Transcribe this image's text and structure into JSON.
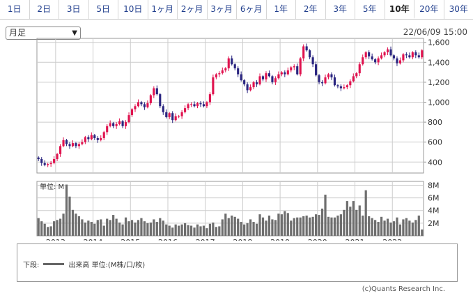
{
  "tabs": [
    {
      "label": "1日"
    },
    {
      "label": "2日"
    },
    {
      "label": "3日"
    },
    {
      "label": "5日"
    },
    {
      "label": "10日"
    },
    {
      "label": "1ヶ月"
    },
    {
      "label": "2ヶ月"
    },
    {
      "label": "3ヶ月"
    },
    {
      "label": "6ヶ月"
    },
    {
      "label": "1年"
    },
    {
      "label": "2年"
    },
    {
      "label": "3年"
    },
    {
      "label": "5年"
    },
    {
      "label": "10年"
    },
    {
      "label": "20年"
    },
    {
      "label": "30年"
    }
  ],
  "active_tab": "10年",
  "period_select": {
    "value": "月足"
  },
  "timestamp": "22/06/09 15:00",
  "colors": {
    "up": "#e0134f",
    "down": "#2a2580",
    "volume": "#6e6e6e",
    "grid": "#cccccc"
  },
  "chart_data": [
    {
      "type": "candlestick",
      "x_ticks": [
        "2013",
        "2014",
        "2015",
        "2016",
        "2017",
        "2018",
        "2019",
        "2020",
        "2021",
        "2022"
      ],
      "y_ticks": [
        "1,600",
        "1,400",
        "1,200",
        "1,000",
        "800",
        "600",
        "400"
      ],
      "ylim": [
        290,
        1640
      ],
      "start": "2012-07",
      "interval": "monthly",
      "close": [
        430,
        390,
        370,
        380,
        390,
        430,
        480,
        560,
        620,
        580,
        560,
        590,
        560,
        580,
        600,
        650,
        630,
        670,
        640,
        620,
        640,
        700,
        760,
        790,
        760,
        780,
        810,
        760,
        800,
        870,
        930,
        960,
        1000,
        980,
        950,
        990,
        1070,
        1140,
        1080,
        960,
        900,
        850,
        890,
        820,
        860,
        860,
        900,
        940,
        980,
        980,
        960,
        990,
        980,
        960,
        1000,
        1080,
        1250,
        1280,
        1290,
        1320,
        1340,
        1440,
        1380,
        1340,
        1280,
        1220,
        1180,
        1120,
        1150,
        1200,
        1180,
        1260,
        1230,
        1290,
        1260,
        1200,
        1240,
        1280,
        1300,
        1280,
        1320,
        1350,
        1360,
        1280,
        1440,
        1560,
        1520,
        1450,
        1380,
        1270,
        1200,
        1190,
        1250,
        1280,
        1250,
        1170,
        1160,
        1140,
        1150,
        1170,
        1210,
        1260,
        1290,
        1380,
        1450,
        1500,
        1460,
        1430,
        1400,
        1440,
        1470,
        1500,
        1530,
        1470,
        1440,
        1390,
        1420,
        1480,
        1470,
        1450,
        1500,
        1470,
        1450,
        1520
      ],
      "volume_y_ticks": [
        "8M",
        "6M",
        "4M",
        "2M"
      ],
      "volume_ylim": [
        0,
        8.6
      ],
      "volume": [
        2.8,
        2.3,
        1.9,
        1.4,
        1.5,
        2.3,
        2.5,
        2.7,
        3.5,
        8.1,
        6.2,
        4.1,
        3.5,
        3.1,
        2.6,
        2.1,
        2.4,
        2.2,
        1.9,
        2.5,
        2.6,
        1.6,
        2.7,
        2.5,
        3.3,
        2.7,
        2.1,
        1.8,
        2.9,
        2.3,
        2.5,
        2.1,
        2.5,
        2.8,
        2.3,
        2.0,
        2.1,
        2.6,
        2.2,
        2.8,
        2.4,
        1.8,
        1.6,
        1.3,
        1.8,
        1.6,
        1.8,
        2.0,
        1.7,
        1.6,
        1.3,
        1.8,
        1.5,
        1.6,
        1.2,
        1.9,
        2.1,
        1.4,
        1.5,
        2.6,
        3.5,
        2.8,
        3.2,
        3.0,
        2.7,
        2.2,
        1.8,
        2.0,
        2.6,
        2.2,
        1.9,
        3.4,
        2.9,
        2.4,
        3.2,
        2.6,
        2.5,
        3.5,
        3.4,
        3.9,
        3.6,
        2.4,
        2.8,
        2.9,
        2.9,
        3.1,
        3.2,
        2.9,
        3.0,
        3.4,
        3.3,
        4.3,
        6.5,
        3.0,
        2.9,
        2.9,
        3.2,
        3.4,
        4.1,
        5.5,
        4.6,
        5.5,
        4.1,
        4.8,
        3.2,
        7.2,
        3.1,
        2.8,
        2.5,
        2.2,
        3.0,
        2.4,
        2.7,
        2.1,
        2.3,
        2.9,
        1.8,
        2.6,
        2.8,
        2.4,
        2.1,
        2.5,
        3.2,
        1.0
      ],
      "volume_label": "単位: M",
      "legend_prefix": "下段:",
      "legend_series": "出来高 単位:(M株/口/枚)"
    }
  ],
  "copyright": "(c)Quants Research Inc."
}
